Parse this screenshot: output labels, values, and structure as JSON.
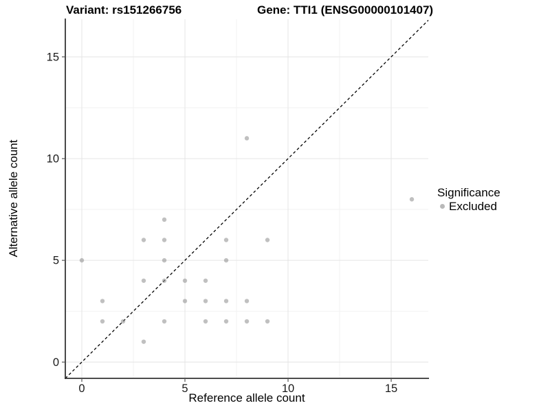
{
  "chart_data": {
    "type": "scatter",
    "title_left": "Variant: rs151266756",
    "title_right": "Gene: TTI1 (ENSG00000101407)",
    "xlabel": "Reference allele count",
    "ylabel": "Alternative allele count",
    "xlim": [
      -0.8,
      16.8
    ],
    "ylim": [
      -0.8,
      16.85
    ],
    "xticks": [
      0,
      5,
      10,
      15
    ],
    "yticks": [
      0,
      5,
      10,
      15
    ],
    "minor_gridlines": [
      2.5,
      7.5,
      12.5
    ],
    "grid": "major+minor",
    "background": "#ffffff",
    "major_grid_color": "#e4e4e4",
    "minor_grid_color": "#f2f2f2",
    "axis_line_color": "#333333",
    "tick_label_color": "#1a1a1a",
    "reference_line": {
      "type": "identity_y_equals_x",
      "style": "dashed",
      "color": "#000000"
    },
    "legend": {
      "title": "Significance",
      "position": "right",
      "entries": [
        {
          "label": "Excluded",
          "color": "#b9b9b9"
        }
      ]
    },
    "series": [
      {
        "name": "Excluded",
        "color": "#8c8c8c",
        "opacity": 0.55,
        "points": [
          [
            0,
            5
          ],
          [
            1,
            2
          ],
          [
            1,
            3
          ],
          [
            2,
            2
          ],
          [
            3,
            1
          ],
          [
            3,
            4
          ],
          [
            3,
            6
          ],
          [
            4,
            2
          ],
          [
            4,
            4
          ],
          [
            4,
            5
          ],
          [
            4,
            6
          ],
          [
            4,
            7
          ],
          [
            5,
            3
          ],
          [
            5,
            4
          ],
          [
            6,
            2
          ],
          [
            6,
            3
          ],
          [
            6,
            4
          ],
          [
            7,
            2
          ],
          [
            7,
            3
          ],
          [
            7,
            5
          ],
          [
            7,
            6
          ],
          [
            8,
            2
          ],
          [
            8,
            3
          ],
          [
            8,
            11
          ],
          [
            9,
            2
          ],
          [
            9,
            6
          ],
          [
            16,
            8
          ]
        ]
      }
    ]
  }
}
